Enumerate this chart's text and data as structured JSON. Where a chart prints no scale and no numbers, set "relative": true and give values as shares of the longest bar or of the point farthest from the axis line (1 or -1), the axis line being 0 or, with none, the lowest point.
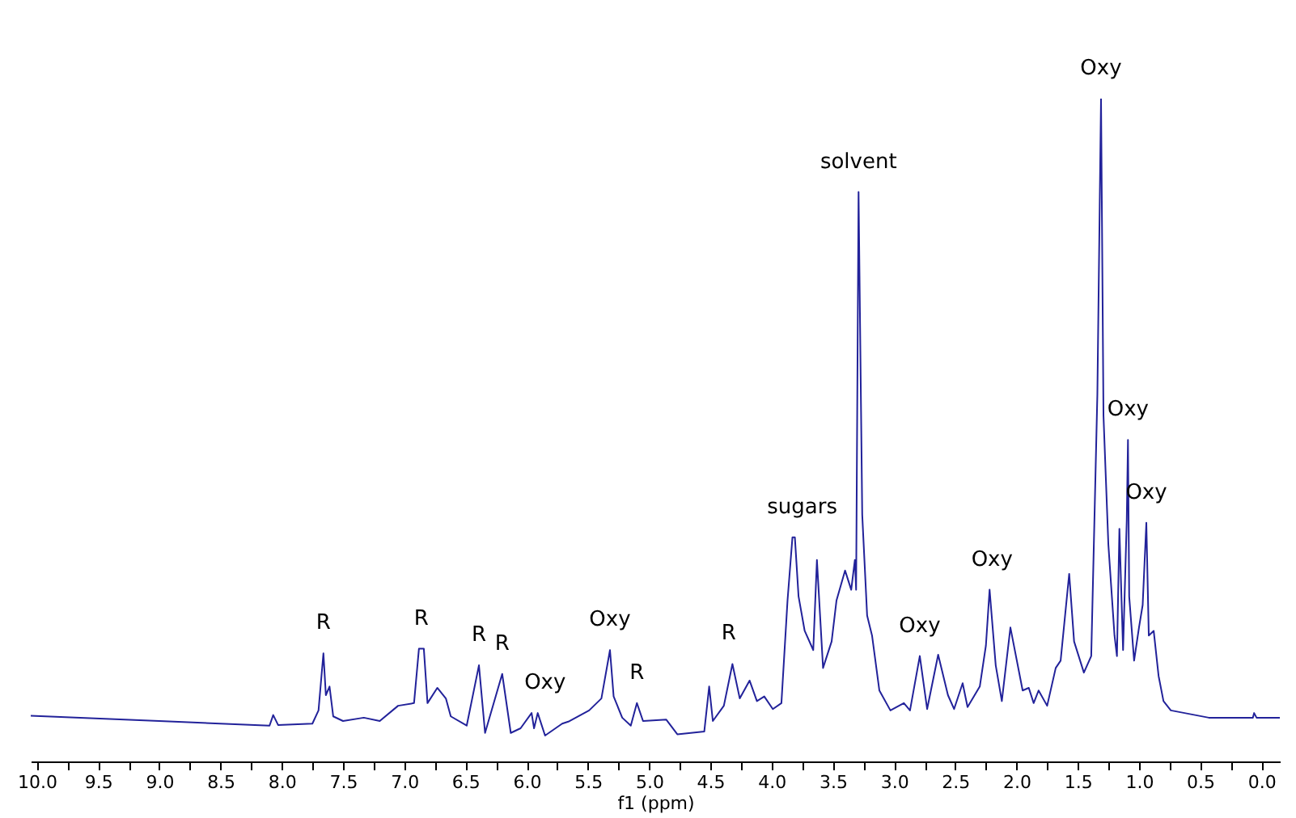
{
  "chart_data": {
    "type": "line",
    "relative": true,
    "xlabel": "f1 (ppm)",
    "xlim": [
      10.05,
      -0.15
    ],
    "xticks": [
      {
        "value": 10,
        "label": "10.0"
      },
      {
        "value": 9.75,
        "label": null
      },
      9.5,
      {
        "value": 9.25,
        "label": null
      },
      {
        "value": 9,
        "label": "9.0"
      },
      {
        "value": 8.75,
        "label": null
      },
      8.5,
      {
        "value": 8.25,
        "label": null
      },
      {
        "value": 8,
        "label": "8.0"
      },
      {
        "value": 7.75,
        "label": null
      },
      7.5,
      {
        "value": 7.25,
        "label": null
      },
      {
        "value": 7,
        "label": "7.0"
      },
      {
        "value": 6.75,
        "label": null
      },
      6.5,
      {
        "value": 6.25,
        "label": null
      },
      {
        "value": 6,
        "label": "6.0"
      },
      {
        "value": 5.75,
        "label": null
      },
      5.5,
      {
        "value": 5.25,
        "label": null
      },
      {
        "value": 5,
        "label": "5.0"
      },
      {
        "value": 4.75,
        "label": null
      },
      4.5,
      {
        "value": 4.25,
        "label": null
      },
      {
        "value": 4,
        "label": "4.0"
      },
      {
        "value": 3.75,
        "label": null
      },
      3.5,
      {
        "value": 3.25,
        "label": null
      },
      {
        "value": 3,
        "label": "3.0"
      },
      {
        "value": 2.75,
        "label": null
      },
      2.5,
      {
        "value": 2.25,
        "label": null
      },
      {
        "value": 2,
        "label": "2.0"
      },
      {
        "value": 1.75,
        "label": null
      },
      1.5,
      {
        "value": 1.25,
        "label": null
      },
      {
        "value": 1,
        "label": "1.0"
      },
      {
        "value": 0.75,
        "label": null
      },
      0.5,
      {
        "value": 0.25,
        "label": null
      },
      {
        "value": 0,
        "label": "0.0"
      }
    ],
    "series": [
      {
        "color": "#22229a",
        "x": [
          10.05,
          9.0,
          8.1,
          8.07,
          8.03,
          7.75,
          7.7,
          7.66,
          7.64,
          7.61,
          7.58,
          7.5,
          7.33,
          7.2,
          7.05,
          6.92,
          6.88,
          6.84,
          6.81,
          6.73,
          6.66,
          6.62,
          6.49,
          6.39,
          6.34,
          6.2,
          6.13,
          6.05,
          5.96,
          5.94,
          5.91,
          5.85,
          5.71,
          5.66,
          5.49,
          5.39,
          5.32,
          5.29,
          5.22,
          5.15,
          5.1,
          5.05,
          4.86,
          4.77,
          4.55,
          4.51,
          4.48,
          4.39,
          4.32,
          4.26,
          4.18,
          4.12,
          4.06,
          3.99,
          3.92,
          3.87,
          3.83,
          3.81,
          3.78,
          3.73,
          3.66,
          3.63,
          3.58,
          3.51,
          3.47,
          3.4,
          3.35,
          3.32,
          3.31,
          3.29,
          3.26,
          3.22,
          3.18,
          3.12,
          3.03,
          2.92,
          2.87,
          2.79,
          2.73,
          2.64,
          2.56,
          2.51,
          2.44,
          2.4,
          2.3,
          2.25,
          2.22,
          2.17,
          2.12,
          2.05,
          1.95,
          1.9,
          1.86,
          1.82,
          1.75,
          1.68,
          1.64,
          1.57,
          1.53,
          1.45,
          1.39,
          1.34,
          1.31,
          1.29,
          1.27,
          1.25,
          1.2,
          1.18,
          1.16,
          1.13,
          1.1,
          1.09,
          1.08,
          1.04,
          1.0,
          0.97,
          0.94,
          0.92,
          0.88,
          0.84,
          0.8,
          0.74,
          0.43,
          0.07,
          0.06,
          0.04,
          -0.15
        ],
        "values": [
          0.069,
          0.061,
          0.054,
          0.07,
          0.055,
          0.057,
          0.077,
          0.163,
          0.1,
          0.113,
          0.068,
          0.061,
          0.066,
          0.061,
          0.084,
          0.088,
          0.17,
          0.17,
          0.088,
          0.111,
          0.095,
          0.068,
          0.054,
          0.145,
          0.043,
          0.132,
          0.043,
          0.05,
          0.073,
          0.05,
          0.073,
          0.039,
          0.057,
          0.06,
          0.077,
          0.095,
          0.168,
          0.098,
          0.066,
          0.054,
          0.088,
          0.061,
          0.063,
          0.041,
          0.045,
          0.113,
          0.061,
          0.084,
          0.147,
          0.095,
          0.122,
          0.091,
          0.098,
          0.079,
          0.088,
          0.243,
          0.338,
          0.338,
          0.249,
          0.197,
          0.168,
          0.304,
          0.141,
          0.181,
          0.243,
          0.288,
          0.259,
          0.304,
          0.259,
          0.859,
          0.372,
          0.22,
          0.19,
          0.107,
          0.077,
          0.088,
          0.077,
          0.159,
          0.079,
          0.161,
          0.1,
          0.079,
          0.118,
          0.082,
          0.113,
          0.175,
          0.259,
          0.145,
          0.091,
          0.202,
          0.107,
          0.111,
          0.088,
          0.107,
          0.084,
          0.141,
          0.152,
          0.283,
          0.181,
          0.134,
          0.159,
          0.553,
          1,
          0.522,
          0.424,
          0.327,
          0.19,
          0.159,
          0.351,
          0.168,
          0.363,
          0.485,
          0.249,
          0.152,
          0.202,
          0.236,
          0.36,
          0.19,
          0.197,
          0.129,
          0.091,
          0.077,
          0.066,
          0.066,
          0.073,
          0.066,
          0.066
        ]
      }
    ],
    "annotations": [
      {
        "text": "R",
        "x": 7.66,
        "y": 0.163
      },
      {
        "text": "R",
        "x": 6.86,
        "y": 0.17
      },
      {
        "text": "R",
        "x": 6.39,
        "y": 0.145
      },
      {
        "text": "R",
        "x": 6.2,
        "y": 0.132
      },
      {
        "text": "Oxy",
        "x": 5.85,
        "y": 0.073
      },
      {
        "text": "Oxy",
        "x": 5.32,
        "y": 0.168
      },
      {
        "text": "R",
        "x": 5.1,
        "y": 0.088
      },
      {
        "text": "R",
        "x": 4.35,
        "y": 0.147
      },
      {
        "text": "sugars",
        "x": 3.75,
        "y": 0.338
      },
      {
        "text": "solvent",
        "x": 3.29,
        "y": 0.859
      },
      {
        "text": "Oxy",
        "x": 2.79,
        "y": 0.159
      },
      {
        "text": "Oxy",
        "x": 2.2,
        "y": 0.259
      },
      {
        "text": "Oxy",
        "x": 1.31,
        "y": 1
      },
      {
        "text": "Oxy",
        "x": 1.09,
        "y": 0.485
      },
      {
        "text": "Oxy",
        "x": 0.94,
        "y": 0.36
      }
    ]
  }
}
